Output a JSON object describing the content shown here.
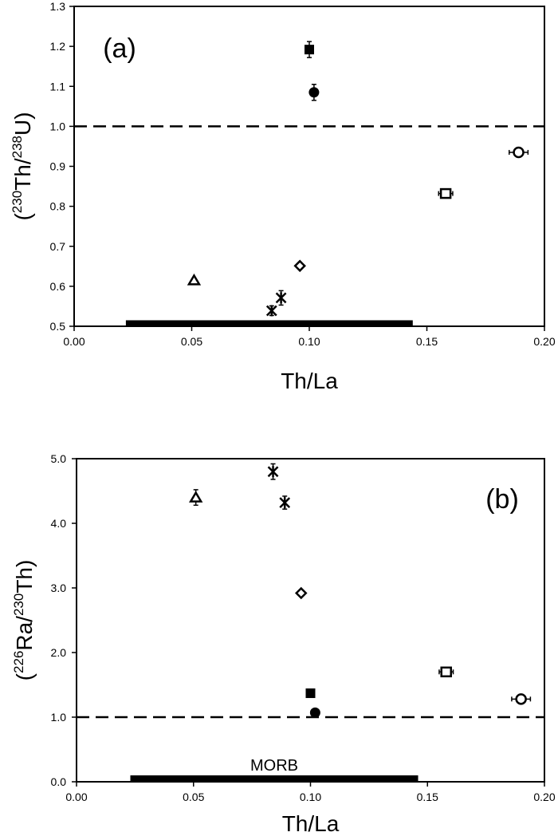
{
  "chart_data": [
    {
      "type": "scatter",
      "panel_label": "(a)",
      "xlabel": "Th/La",
      "ylabel_parts": [
        "(",
        "230",
        "Th/",
        "238",
        "U)"
      ],
      "xlim": [
        0.0,
        0.2
      ],
      "ylim": [
        0.5,
        1.3
      ],
      "xticks": [
        "0.00",
        "0.05",
        "0.10",
        "0.15",
        "0.20"
      ],
      "yticks": [
        "0.5",
        "0.6",
        "0.7",
        "0.8",
        "0.9",
        "1.0",
        "1.1",
        "1.2",
        "1.3"
      ],
      "reference_line": {
        "y": 1.0,
        "style": "dashed"
      },
      "range_bar": {
        "x": [
          0.022,
          0.144
        ],
        "y": 0.508,
        "label": ""
      },
      "series": [
        {
          "marker": "filled-square",
          "points": [
            {
              "x": 0.1,
              "y": 1.192,
              "yerr": 0.02
            }
          ]
        },
        {
          "marker": "filled-circle",
          "points": [
            {
              "x": 0.102,
              "y": 1.085,
              "yerr": 0.02
            }
          ]
        },
        {
          "marker": "open-circle",
          "points": [
            {
              "x": 0.189,
              "y": 0.935,
              "xerr": 0.004
            }
          ]
        },
        {
          "marker": "open-square",
          "points": [
            {
              "x": 0.158,
              "y": 0.832,
              "xerr": 0.003
            }
          ]
        },
        {
          "marker": "open-diamond",
          "points": [
            {
              "x": 0.096,
              "y": 0.651
            }
          ]
        },
        {
          "marker": "open-triangle",
          "points": [
            {
              "x": 0.051,
              "y": 0.615
            }
          ]
        },
        {
          "marker": "asterisk",
          "points": [
            {
              "x": 0.088,
              "y": 0.571,
              "yerr": 0.018
            },
            {
              "x": 0.084,
              "y": 0.539,
              "yerr": 0.012
            }
          ]
        }
      ]
    },
    {
      "type": "scatter",
      "panel_label": "(b)",
      "xlabel": "Th/La",
      "ylabel_parts": [
        "(",
        "226",
        "Ra/",
        "230",
        "Th)"
      ],
      "xlim": [
        0.0,
        0.2
      ],
      "ylim": [
        0.0,
        5.0
      ],
      "xticks": [
        "0.00",
        "0.05",
        "0.10",
        "0.15",
        "0.20"
      ],
      "yticks": [
        "0.0",
        "1.0",
        "2.0",
        "3.0",
        "4.0",
        "5.0"
      ],
      "reference_line": {
        "y": 1.0,
        "style": "dashed"
      },
      "range_bar": {
        "x": [
          0.023,
          0.146
        ],
        "y": 0.05,
        "label": "MORB"
      },
      "series": [
        {
          "marker": "asterisk",
          "points": [
            {
              "x": 0.084,
              "y": 4.8,
              "yerr": 0.12
            },
            {
              "x": 0.089,
              "y": 4.32,
              "yerr": 0.1
            }
          ]
        },
        {
          "marker": "open-triangle",
          "points": [
            {
              "x": 0.051,
              "y": 4.4,
              "yerr": 0.12
            }
          ]
        },
        {
          "marker": "open-diamond",
          "points": [
            {
              "x": 0.096,
              "y": 2.92
            }
          ]
        },
        {
          "marker": "open-square",
          "points": [
            {
              "x": 0.158,
              "y": 1.7,
              "xerr": 0.003
            }
          ]
        },
        {
          "marker": "filled-square",
          "points": [
            {
              "x": 0.1,
              "y": 1.37
            }
          ]
        },
        {
          "marker": "open-circle",
          "points": [
            {
              "x": 0.19,
              "y": 1.28,
              "xerr": 0.004
            }
          ]
        },
        {
          "marker": "filled-circle",
          "points": [
            {
              "x": 0.102,
              "y": 1.07
            }
          ]
        }
      ]
    }
  ]
}
